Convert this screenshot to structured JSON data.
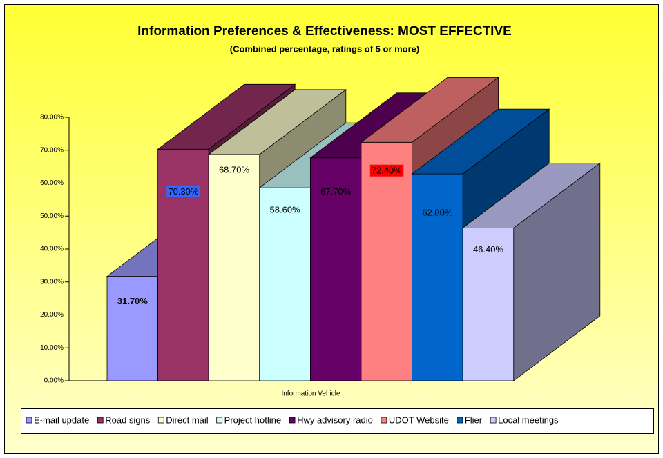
{
  "chart_data": {
    "type": "bar3d",
    "title": "Information Preferences & Effectiveness: MOST EFFECTIVE",
    "subtitle": "(Combined percentage, ratings of 5 or more)",
    "x_label": "Information Vehicle",
    "categories": [
      "E-mail update",
      "Road signs",
      "Direct mail",
      "Project hotline",
      "Hwy advisory radio",
      "UDOT Website",
      "Flier",
      "Local meetings"
    ],
    "values": [
      31.7,
      70.3,
      68.7,
      58.6,
      67.7,
      72.4,
      62.8,
      46.4
    ],
    "value_labels": [
      "31.70%",
      "70.30%",
      "68.70%",
      "58.60%",
      "67.70%",
      "72.40%",
      "62.80%",
      "46.40%"
    ],
    "colors": [
      "#9999ff",
      "#993366",
      "#ffffcc",
      "#ccffff",
      "#660066",
      "#ff8080",
      "#0066cc",
      "#ccccff"
    ],
    "value_label_backgrounds": [
      null,
      "#3366ff",
      null,
      null,
      null,
      "#ff0000",
      null,
      null
    ],
    "ylim": [
      0,
      80
    ],
    "yticks": [
      {
        "value": 0,
        "label": "0.00%"
      },
      {
        "value": 10,
        "label": "10.00%"
      },
      {
        "value": 20,
        "label": "20.00%"
      },
      {
        "value": 30,
        "label": "30.00%"
      },
      {
        "value": 40,
        "label": "40.00%"
      },
      {
        "value": 50,
        "label": "50.00%"
      },
      {
        "value": 60,
        "label": "60.00%"
      },
      {
        "value": 70,
        "label": "70.00%"
      },
      {
        "value": 80,
        "label": "80.00%"
      }
    ],
    "legend": "bottom"
  }
}
